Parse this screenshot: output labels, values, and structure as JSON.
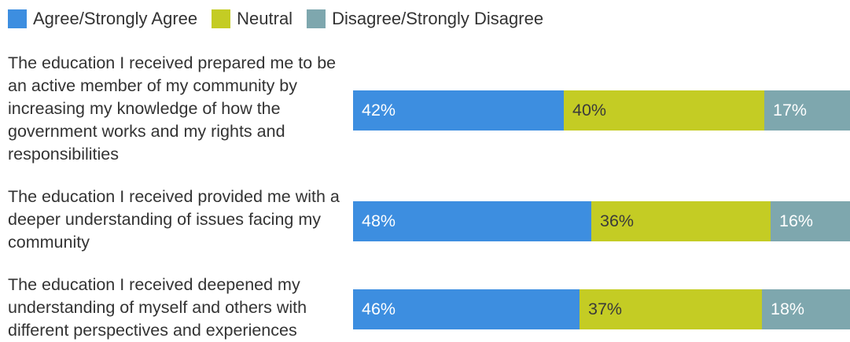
{
  "colors": {
    "agree": "#3d8ee0",
    "neutral": "#c4cc24",
    "disagree": "#7ea7ae"
  },
  "chart_data": {
    "type": "bar",
    "orientation": "horizontal",
    "stacked": true,
    "legend_position": "top-left",
    "grid": false,
    "xlim": [
      0,
      100
    ],
    "categories": [
      "The education I received prepared me to be an active member of my community by increasing my knowledge of how the government works and my rights and responsibilities",
      "The education I received provided me with a deeper understanding of issues facing my community",
      "The education I received deepened my understanding of myself and others with different perspectives and experiences"
    ],
    "series": [
      {
        "name": "Agree/Strongly Agree",
        "values": [
          42,
          48,
          46
        ],
        "labels": [
          "42%",
          "48%",
          "46%"
        ]
      },
      {
        "name": "Neutral",
        "values": [
          40,
          36,
          37
        ],
        "labels": [
          "40%",
          "36%",
          "37%"
        ]
      },
      {
        "name": "Disagree/Strongly Disagree",
        "values": [
          17,
          16,
          18
        ],
        "labels": [
          "17%",
          "16%",
          "18%"
        ]
      }
    ]
  }
}
